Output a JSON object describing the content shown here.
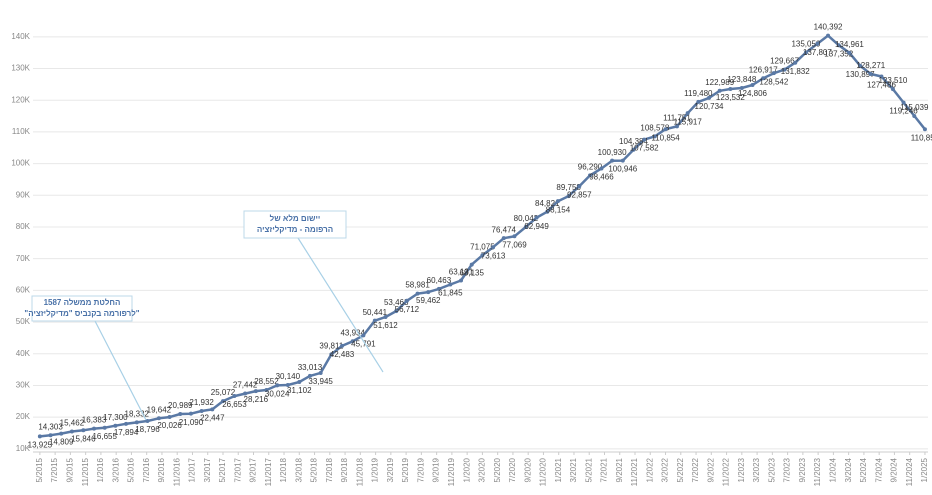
{
  "chart_data": {
    "type": "line",
    "annotations": [
      {
        "lines": [
          "יישום מלא של",
          "הרפומה - מדיקליזציה"
        ]
      },
      {
        "lines": [
          "החלטת ממשלה 1587",
          "\"לרפורמה  בקנביס \"מדיקליזציה\""
        ]
      }
    ],
    "xlim": [
      -0.9,
      116.4
    ],
    "xticks": [
      {
        "value": 0,
        "label": "5/2015"
      },
      {
        "value": 2,
        "label": "7/2015"
      },
      {
        "value": 4,
        "label": "9/2015"
      },
      {
        "value": 6,
        "label": "11/2015"
      },
      {
        "value": 8,
        "label": "1/2016"
      },
      {
        "value": 10,
        "label": "3/2016"
      },
      {
        "value": 12,
        "label": "5/2016"
      },
      {
        "value": 14,
        "label": "7/2016"
      },
      {
        "value": 16,
        "label": "9/2016"
      },
      {
        "value": 18,
        "label": "11/2016"
      },
      {
        "value": 20,
        "label": "1/2017"
      },
      {
        "value": 22,
        "label": "3/2017"
      },
      {
        "value": 24,
        "label": "5/2017"
      },
      {
        "value": 26,
        "label": "7/2017"
      },
      {
        "value": 28,
        "label": "9/2017"
      },
      {
        "value": 30,
        "label": "11/2017"
      },
      {
        "value": 32,
        "label": "1/2018"
      },
      {
        "value": 34,
        "label": "3/2018"
      },
      {
        "value": 36,
        "label": "5/2018"
      },
      {
        "value": 38,
        "label": "7/2018"
      },
      {
        "value": 40,
        "label": "9/2018"
      },
      {
        "value": 42,
        "label": "11/2018"
      },
      {
        "value": 44,
        "label": "1/2019"
      },
      {
        "value": 46,
        "label": "3/2019"
      },
      {
        "value": 48,
        "label": "5/2019"
      },
      {
        "value": 50,
        "label": "7/2019"
      },
      {
        "value": 52,
        "label": "9/2019"
      },
      {
        "value": 54,
        "label": "11/2019"
      },
      {
        "value": 56,
        "label": "1/2020"
      },
      {
        "value": 58,
        "label": "3/2020"
      },
      {
        "value": 60,
        "label": "5/2020"
      },
      {
        "value": 62,
        "label": "7/2020"
      },
      {
        "value": 64,
        "label": "9/2020"
      },
      {
        "value": 66,
        "label": "11/2020"
      },
      {
        "value": 68,
        "label": "1/2021"
      },
      {
        "value": 70,
        "label": "3/2021"
      },
      {
        "value": 72,
        "label": "5/2021"
      },
      {
        "value": 74,
        "label": "7/2021"
      },
      {
        "value": 76,
        "label": "9/2021"
      },
      {
        "value": 78,
        "label": "11/2021"
      },
      {
        "value": 80,
        "label": "1/2022"
      },
      {
        "value": 82,
        "label": "3/2022"
      },
      {
        "value": 84,
        "label": "5/2022"
      },
      {
        "value": 86,
        "label": "7/2022"
      },
      {
        "value": 88,
        "label": "9/2022"
      },
      {
        "value": 90,
        "label": "11/2022"
      },
      {
        "value": 92,
        "label": "1/2023"
      },
      {
        "value": 94,
        "label": "3/2023"
      },
      {
        "value": 96,
        "label": "5/2023"
      },
      {
        "value": 98,
        "label": "7/2023"
      },
      {
        "value": 100,
        "label": "9/2023"
      },
      {
        "value": 102,
        "label": "11/2023"
      },
      {
        "value": 104,
        "label": "1/2024"
      },
      {
        "value": 106,
        "label": "3/2024"
      },
      {
        "value": 108,
        "label": "5/2024"
      },
      {
        "value": 110,
        "label": "7/2024"
      },
      {
        "value": 112,
        "label": "9/2024"
      },
      {
        "value": 114,
        "label": "11/2024"
      },
      {
        "value": 116,
        "label": "1/2025"
      }
    ],
    "ylim": [
      9000,
      145000
    ],
    "yticks": [
      {
        "value": 10000,
        "label": "10K"
      },
      {
        "value": 20000,
        "label": "20K"
      },
      {
        "value": 30000,
        "label": "30K"
      },
      {
        "value": 40000,
        "label": "40K"
      },
      {
        "value": 50000,
        "label": "50K"
      },
      {
        "value": 60000,
        "label": "60K"
      },
      {
        "value": 70000,
        "label": "70K"
      },
      {
        "value": 80000,
        "label": "80K"
      },
      {
        "value": 90000,
        "label": "90K"
      },
      {
        "value": 100000,
        "label": "100K"
      },
      {
        "value": 110000,
        "label": "110K"
      },
      {
        "value": 120000,
        "label": "120K"
      },
      {
        "value": 130000,
        "label": "130K"
      },
      {
        "value": 140000,
        "label": "140K"
      }
    ],
    "grid": true,
    "series": [
      {
        "color": "#5a79a5",
        "x": [
          0,
          1.4,
          2.8,
          4.2,
          5.7,
          7.1,
          8.5,
          9.9,
          11.3,
          12.7,
          14.1,
          15.6,
          17.0,
          18.4,
          19.8,
          21.2,
          22.6,
          24.0,
          25.5,
          26.9,
          28.3,
          29.7,
          31.1,
          32.5,
          34.0,
          35.4,
          36.8,
          38.2,
          39.6,
          41.0,
          42.4,
          43.9,
          45.3,
          46.7,
          48.1,
          49.5,
          50.9,
          52.3,
          53.8,
          55.2,
          56.6,
          58.0,
          59.4,
          60.8,
          62.2,
          63.7,
          65.1,
          66.5,
          67.9,
          69.3,
          70.7,
          72.1,
          73.6,
          75.0,
          76.4,
          77.8,
          79.2,
          80.6,
          82.0,
          83.5,
          84.9,
          86.3,
          87.7,
          89.1,
          90.5,
          92.0,
          93.4,
          94.8,
          96.2,
          97.6,
          99.0,
          100.4,
          101.9,
          103.3,
          104.7,
          106.1,
          107.5,
          108.9,
          110.3,
          111.8,
          113.2,
          114.6,
          116
        ],
        "values": [
          13925,
          14303,
          14809,
          15462,
          15846,
          16383,
          16655,
          17300,
          17894,
          18332,
          18796,
          19642,
          20026,
          20989,
          21090,
          21932,
          22447,
          25072,
          26653,
          27442,
          28216,
          28552,
          30024,
          30140,
          31102,
          33013,
          33945,
          39811,
          42483,
          43934,
          45791,
          50441,
          51612,
          53463,
          56712,
          58981,
          59462,
          60463,
          61845,
          63131,
          68135,
          71075,
          73613,
          76474,
          77069,
          80042,
          82949,
          84821,
          88154,
          89758,
          92857,
          96290,
          98466,
          100930,
          100946,
          104384,
          107582,
          108578,
          110854,
          111751,
          115917,
          119480,
          120734,
          122989,
          123532,
          123848,
          124806,
          126917,
          128542,
          129667,
          131832,
          135050,
          137807,
          140392,
          137352,
          134961,
          130897,
          128271,
          127486,
          123510,
          119246,
          115039,
          110856
        ],
        "value_labels": [
          "13,925",
          "14,303",
          "14,809",
          "15,462",
          "15,846",
          "16,383",
          "16,655",
          "17,300",
          "17,894",
          "18,332",
          "18,796",
          "19,642",
          "20,026",
          "20,989",
          "21,090",
          "21,932",
          "22,447",
          "25,072",
          "26,653",
          "27,442",
          "28,216",
          "28,552",
          "30,024",
          "30,140",
          "31,102",
          "33,013",
          "33,945",
          "39,811",
          "42,483",
          "43,934",
          "45,791",
          "50,441",
          "51,612",
          "53,463",
          "56,712",
          "58,981",
          "59,462",
          "60,463",
          "61,845",
          "63,131",
          "68,135",
          "71,075",
          "73,613",
          "76,474",
          "77,069",
          "80,042",
          "82,949",
          "84,821",
          "88,154",
          "89,758",
          "92,857",
          "96,290",
          "98,466",
          "100,930",
          "100,946",
          "104,384",
          "107,582",
          "108,578",
          "110,854",
          "111,751",
          "115,917",
          "119,480",
          "120,734",
          "122,989",
          "123,532",
          "123,848",
          "124,806",
          "126,917",
          "128,542",
          "129,667",
          "131,832",
          "135,050",
          "137,807",
          "140,392",
          "137,352",
          "134,961",
          "130,897",
          "128,271",
          "127,486",
          "123,510",
          "119,246",
          "115,039",
          "110,856"
        ]
      }
    ]
  }
}
